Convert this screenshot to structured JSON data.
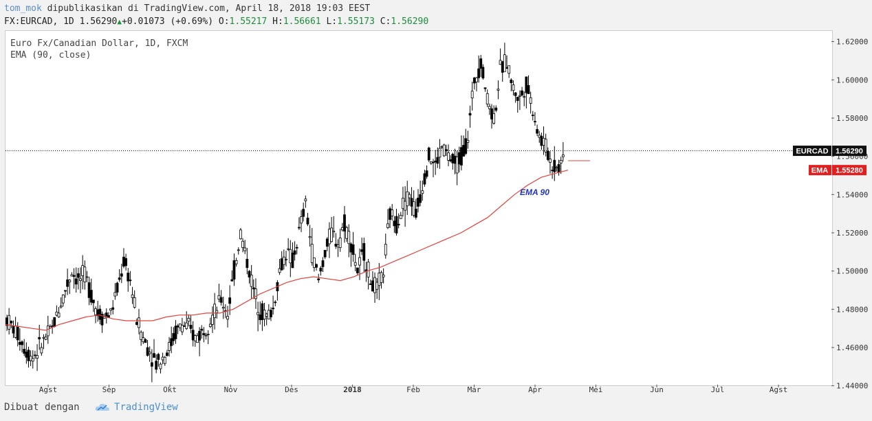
{
  "header": {
    "author": "tom_mok",
    "published": " dipublikasikan di TradingView.com, April 18, 2018 19:03 EEST",
    "symbol_line_prefix": "FX:EURCAD, 1D 1.56290",
    "change": "+0.01073 (+0.69%)",
    "o_label": "O:",
    "o_value": "1.55217",
    "h_label": "H:",
    "h_value": "1.56661",
    "l_label": "L:",
    "l_value": "1.55173",
    "c_label": "C:",
    "c_value": "1.56290"
  },
  "legend": {
    "line1": "Euro Fx/Canadian Dollar, 1D, FXCM",
    "line2": "EMA (90, close)"
  },
  "footer": {
    "text": "Dibuat dengan",
    "brand": "TradingView"
  },
  "colors": {
    "ema": "#e8403a",
    "price_tag": "#111111",
    "ema_tag": "#e02020",
    "up": "#1a8f3a",
    "author": "#5b8ec4",
    "brand": "#4a8fd0"
  },
  "chart_data": {
    "type": "line",
    "title": "Euro Fx/Canadian Dollar, 1D, FXCM",
    "ylim": [
      1.4406,
      1.6256
    ],
    "y_ticks": [
      "1.62000",
      "1.60000",
      "1.58000",
      "1.56000",
      "1.54000",
      "1.52000",
      "1.50000",
      "1.48000",
      "1.46000",
      "1.44000"
    ],
    "x_ticks": [
      "Agst",
      "Sep",
      "Okt",
      "Nov",
      "Des",
      "2018",
      "Feb",
      "Mar",
      "Apr",
      "Mei",
      "Jun",
      "Jul",
      "Agst"
    ],
    "price_label": {
      "name": "EURCAD",
      "value": "1.56290"
    },
    "ema_label": {
      "name": "EMA",
      "value": "1.55280"
    },
    "annotation": "EMA 90",
    "series": [
      {
        "name": "Price",
        "values": [
          1.475,
          1.47,
          1.465,
          1.458,
          1.455,
          1.46,
          1.465,
          1.47,
          1.48,
          1.49,
          1.5,
          1.495,
          1.498,
          1.488,
          1.478,
          1.476,
          1.478,
          1.49,
          1.505,
          1.495,
          1.475,
          1.465,
          1.458,
          1.452,
          1.455,
          1.46,
          1.468,
          1.472,
          1.47,
          1.465,
          1.468,
          1.473,
          1.478,
          1.485,
          1.478,
          1.5,
          1.52,
          1.505,
          1.49,
          1.48,
          1.476,
          1.48,
          1.5,
          1.51,
          1.505,
          1.52,
          1.535,
          1.51,
          1.495,
          1.51,
          1.52,
          1.515,
          1.525,
          1.515,
          1.5,
          1.51,
          1.495,
          1.49,
          1.5,
          1.53,
          1.525,
          1.535,
          1.54,
          1.53,
          1.545,
          1.56,
          1.555,
          1.565,
          1.56,
          1.555,
          1.56,
          1.57,
          1.6,
          1.61,
          1.59,
          1.58,
          1.605,
          1.61,
          1.595,
          1.59,
          1.598,
          1.585,
          1.57,
          1.565,
          1.555,
          1.555,
          1.562
        ]
      },
      {
        "name": "EMA",
        "values": [
          1.472,
          1.471,
          1.47,
          1.469,
          1.472,
          1.474,
          1.476,
          1.477,
          1.475,
          1.474,
          1.474,
          1.474,
          1.476,
          1.477,
          1.477,
          1.478,
          1.478,
          1.48,
          1.484,
          1.488,
          1.491,
          1.494,
          1.496,
          1.497,
          1.496,
          1.495,
          1.497,
          1.5,
          1.502,
          1.505,
          1.508,
          1.511,
          1.514,
          1.517,
          1.52,
          1.524,
          1.528,
          1.534,
          1.54,
          1.545,
          1.549,
          1.551,
          1.5528
        ]
      }
    ]
  }
}
